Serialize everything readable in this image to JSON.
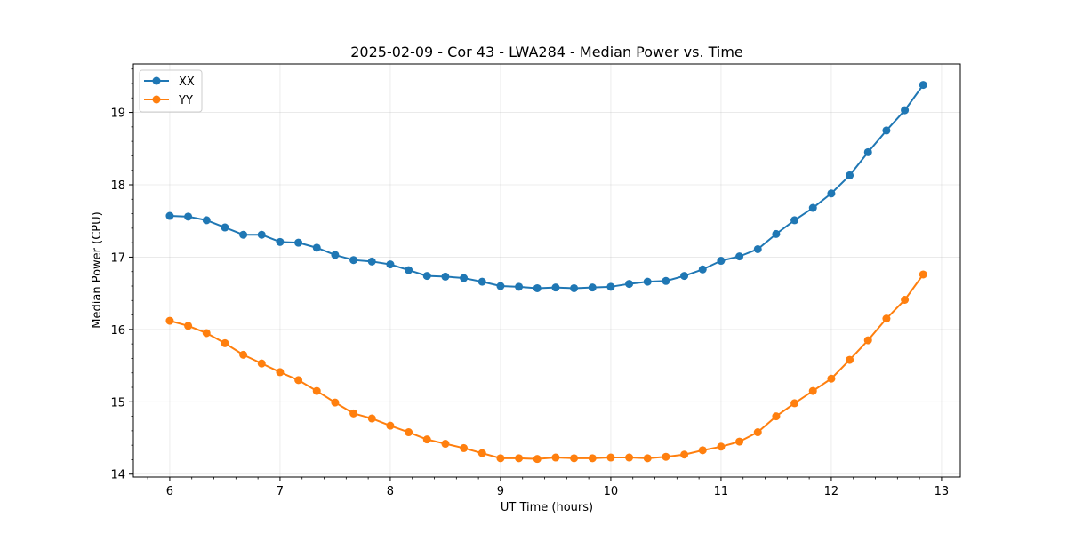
{
  "chart_data": {
    "type": "line",
    "title": "2025-02-09 - Cor 43 - LWA284 - Median Power vs. Time",
    "xlabel": "UT Time (hours)",
    "ylabel": "Median Power (CPU)",
    "xlim": [
      5.67,
      13.17
    ],
    "ylim": [
      13.96,
      19.67
    ],
    "xticks": [
      6,
      7,
      8,
      9,
      10,
      11,
      12,
      13
    ],
    "yticks": [
      14,
      15,
      16,
      17,
      18,
      19
    ],
    "xtick_labels": [
      "6",
      "7",
      "8",
      "9",
      "10",
      "11",
      "12",
      "13"
    ],
    "ytick_labels": [
      "14",
      "15",
      "16",
      "17",
      "18",
      "19"
    ],
    "grid": true,
    "legend_position": "top-left",
    "x": [
      6.0,
      6.1667,
      6.3333,
      6.5,
      6.6667,
      6.8333,
      7.0,
      7.1667,
      7.3333,
      7.5,
      7.6667,
      7.8333,
      8.0,
      8.1667,
      8.3333,
      8.5,
      8.6667,
      8.8333,
      9.0,
      9.1667,
      9.3333,
      9.5,
      9.6667,
      9.8333,
      10.0,
      10.1667,
      10.3333,
      10.5,
      10.6667,
      10.8333,
      11.0,
      11.1667,
      11.3333,
      11.5,
      11.6667,
      11.8333,
      12.0,
      12.1667,
      12.3333,
      12.5,
      12.6667,
      12.8333
    ],
    "series": [
      {
        "name": "XX",
        "color": "#1f77b4",
        "values": [
          17.57,
          17.56,
          17.51,
          17.41,
          17.31,
          17.31,
          17.21,
          17.2,
          17.13,
          17.03,
          16.96,
          16.94,
          16.9,
          16.82,
          16.74,
          16.73,
          16.71,
          16.66,
          16.6,
          16.59,
          16.57,
          16.58,
          16.57,
          16.58,
          16.59,
          16.63,
          16.66,
          16.67,
          16.74,
          16.83,
          16.95,
          17.01,
          17.11,
          17.32,
          17.51,
          17.68,
          17.88,
          18.13,
          18.45,
          18.75,
          19.03,
          19.38
        ]
      },
      {
        "name": "YY",
        "color": "#ff7f0e",
        "values": [
          16.12,
          16.05,
          15.95,
          15.81,
          15.65,
          15.53,
          15.41,
          15.3,
          15.15,
          14.99,
          14.84,
          14.77,
          14.67,
          14.58,
          14.48,
          14.42,
          14.36,
          14.29,
          14.22,
          14.22,
          14.21,
          14.23,
          14.22,
          14.22,
          14.23,
          14.23,
          14.22,
          14.24,
          14.27,
          14.33,
          14.38,
          14.45,
          14.58,
          14.8,
          14.98,
          15.15,
          15.32,
          15.58,
          15.85,
          16.15,
          16.41,
          16.76
        ]
      }
    ]
  }
}
